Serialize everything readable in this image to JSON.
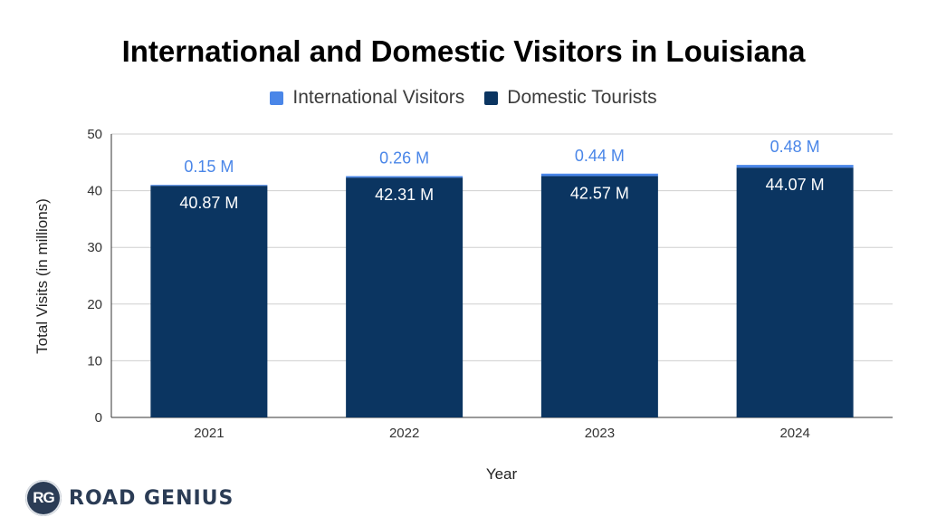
{
  "chart_data": {
    "type": "bar",
    "stacked": true,
    "title": "International and Domestic Visitors in Louisiana",
    "xlabel": "Year",
    "ylabel": "Total Visits (in millions)",
    "categories": [
      "2021",
      "2022",
      "2023",
      "2024"
    ],
    "series": [
      {
        "name": "Domestic Tourists",
        "values": [
          40.87,
          42.31,
          42.57,
          44.07
        ],
        "labels": [
          "40.87 M",
          "42.31 M",
          "42.57 M",
          "44.07 M"
        ],
        "color": "#0b3561"
      },
      {
        "name": "International Visitors",
        "values": [
          0.15,
          0.26,
          0.44,
          0.48
        ],
        "labels": [
          "0.15 M",
          "0.26 M",
          "0.44 M",
          "0.48 M"
        ],
        "color": "#4a86e8"
      }
    ],
    "ylim": [
      0,
      50
    ],
    "yticks": [
      "0",
      "10",
      "20",
      "30",
      "40",
      "50"
    ],
    "grid": true,
    "legend_position": "top"
  },
  "legend": [
    {
      "label": "International Visitors",
      "color": "#4a86e8"
    },
    {
      "label": "Domestic Tourists",
      "color": "#0b3561"
    }
  ],
  "logo": {
    "badge_text": "RG",
    "brand_text": "ROAD GENIUS"
  }
}
